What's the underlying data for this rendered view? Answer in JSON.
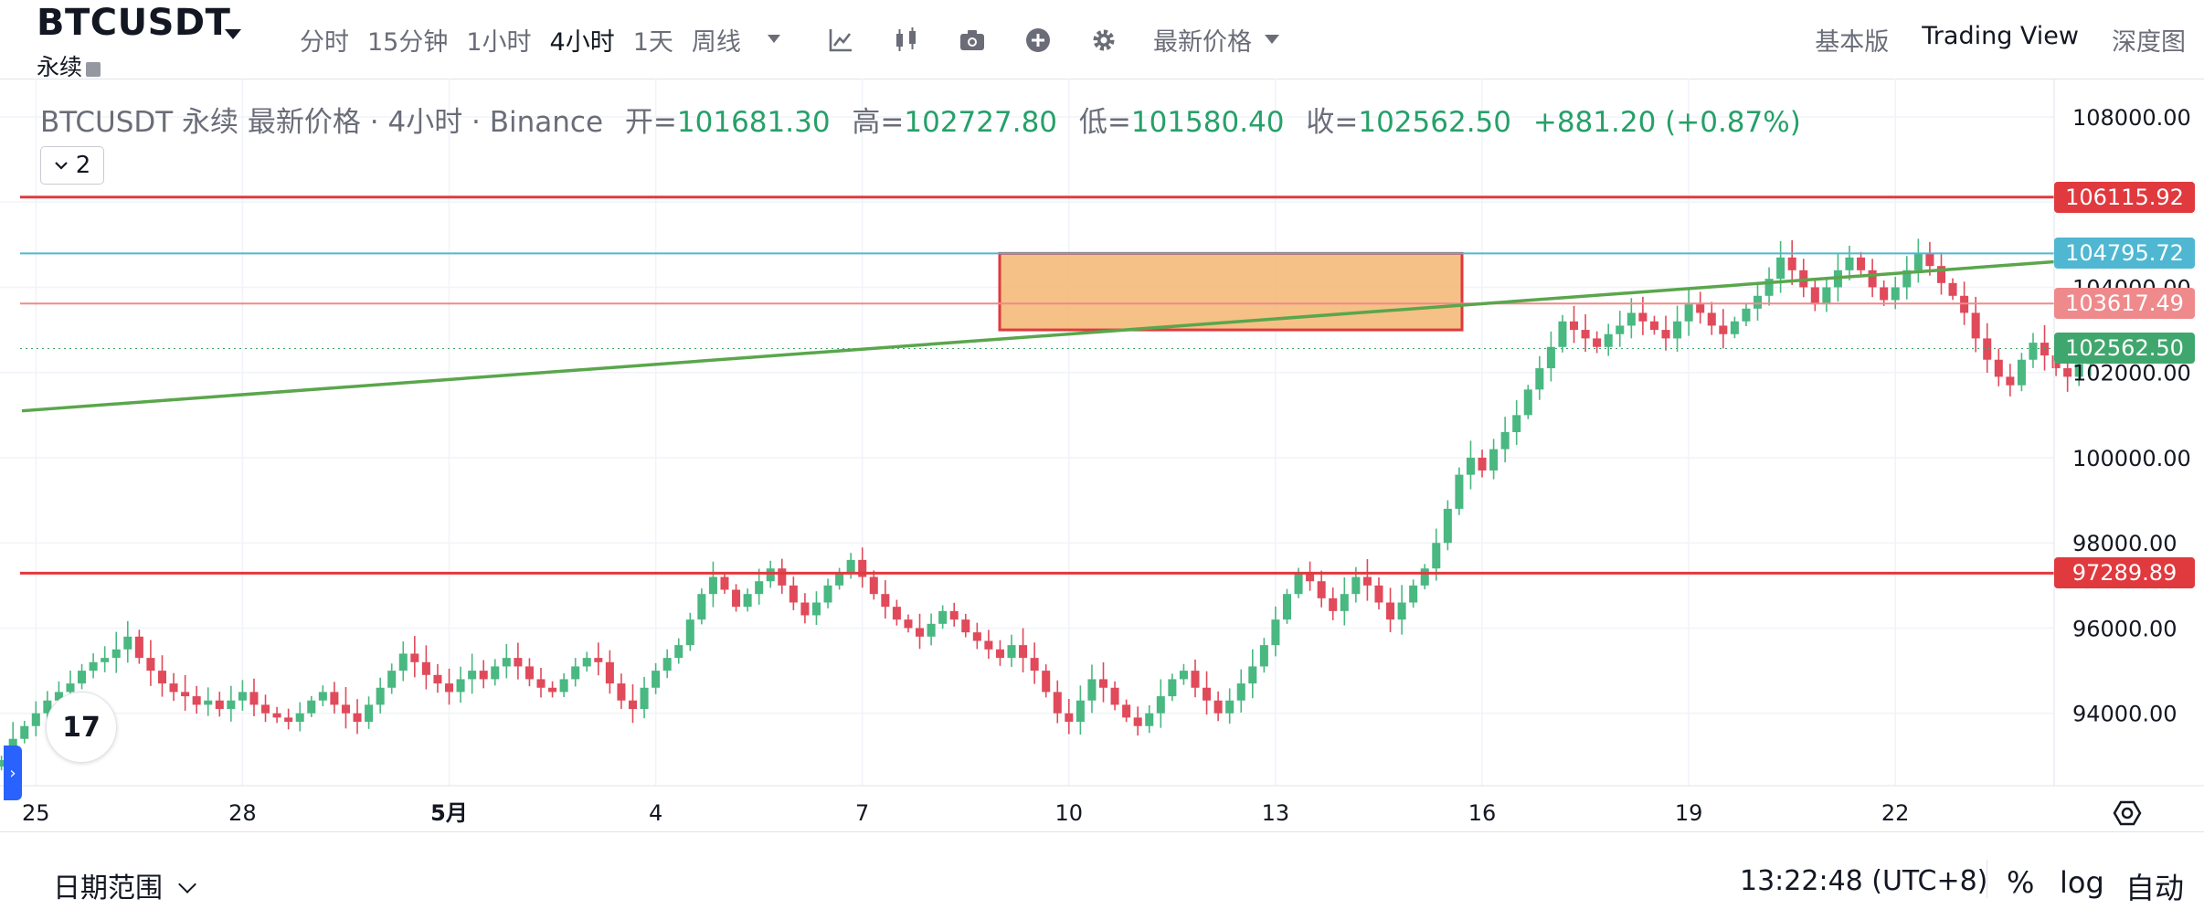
{
  "toolbar": {
    "symbol": "BTCUSDT",
    "subtype": "永续",
    "intervals": [
      "分时",
      "15分钟",
      "1小时",
      "4小时",
      "1天",
      "周线"
    ],
    "active_interval": "4小时",
    "icons": [
      "indicators-icon",
      "chart-type-icon",
      "camera-icon",
      "add-icon",
      "settings-icon"
    ],
    "price_type": "最新价格",
    "modes": [
      "基本版",
      "Trading View",
      "深度图"
    ],
    "active_mode": "Trading View"
  },
  "legend": {
    "title": "BTCUSDT 永续 最新价格 · 4小时 · Binance",
    "open_label": "开=",
    "open": "101681.30",
    "high_label": "高=",
    "high": "102727.80",
    "low_label": "低=",
    "low": "101580.40",
    "close_label": "收=",
    "close": "102562.50",
    "change": "+881.20 (+0.87%)",
    "collapse_count": "2"
  },
  "logo_text": "17",
  "price_lines": [
    {
      "price": "106115.92",
      "value": 106115.92,
      "color": "#e0393e",
      "width": 3
    },
    {
      "price": "104795.72",
      "value": 104795.72,
      "color": "#4fb7d2",
      "width": 2
    },
    {
      "price": "103617.49",
      "value": 103617.49,
      "color": "#ef8a8c",
      "width": 2
    },
    {
      "price": "102562.50",
      "value": 102562.5,
      "color": "#3fa76d",
      "width": 1
    },
    {
      "price": "97289.89",
      "value": 97289.89,
      "color": "#e0393e",
      "width": 3
    }
  ],
  "colors": {
    "up": "#26a69a",
    "up_body": "#49b881",
    "down": "#e04a5a",
    "trend": "#5aa64c",
    "box_fill": "#f3b671",
    "box_border": "#e0393e"
  },
  "chart_data": {
    "type": "candlestick",
    "title": "BTCUSDT 永续 最新价格 · 4小时 · Binance",
    "y_ticks": [
      108000,
      106000,
      104000,
      102000,
      100000,
      98000,
      96000,
      94000
    ],
    "y_tick_labels": [
      "108000.00",
      "106000.00",
      "104000.00",
      "102000.00",
      "100000.00",
      "98000.00",
      "96000.00",
      "94000.00"
    ],
    "ylim": [
      92300,
      108900
    ],
    "x_ticks": [
      {
        "label": "25",
        "day": 25
      },
      {
        "label": "28",
        "day": 28
      },
      {
        "label": "5月",
        "day": 31
      },
      {
        "label": "4",
        "day": 34
      },
      {
        "label": "7",
        "day": 37
      },
      {
        "label": "10",
        "day": 40
      },
      {
        "label": "13",
        "day": 43
      },
      {
        "label": "16",
        "day": 46
      },
      {
        "label": "19",
        "day": 49
      },
      {
        "label": "22",
        "day": 52
      }
    ],
    "xlim": [
      24.85,
      54.2
    ],
    "candle_step_days": 0.16667,
    "first_candle_day": 24.5,
    "closes": [
      92900,
      93400,
      93700,
      94000,
      94300,
      94500,
      94700,
      95000,
      95200,
      95300,
      95500,
      95800,
      95300,
      95000,
      94700,
      94500,
      94400,
      94200,
      94300,
      94100,
      94300,
      94500,
      94200,
      94000,
      93900,
      93800,
      94000,
      94300,
      94500,
      94200,
      94000,
      93800,
      94200,
      94600,
      95000,
      95400,
      95200,
      94900,
      94700,
      94500,
      94800,
      95000,
      94800,
      95100,
      95300,
      95100,
      94800,
      94600,
      94500,
      94800,
      95100,
      95300,
      95200,
      94700,
      94300,
      94100,
      94600,
      95000,
      95300,
      95600,
      96200,
      96800,
      97200,
      96900,
      96500,
      96800,
      97100,
      97400,
      97000,
      96600,
      96300,
      96600,
      97000,
      97300,
      97600,
      97200,
      96800,
      96500,
      96200,
      96000,
      95800,
      96100,
      96400,
      96200,
      95900,
      95700,
      95500,
      95300,
      95600,
      95300,
      95000,
      94500,
      94000,
      93800,
      94300,
      94800,
      94600,
      94200,
      93900,
      93700,
      94000,
      94400,
      94800,
      95000,
      94600,
      94300,
      94000,
      94300,
      94700,
      95100,
      95600,
      96200,
      96800,
      97300,
      97100,
      96700,
      96400,
      96800,
      97200,
      97000,
      96600,
      96200,
      96600,
      97000,
      97400,
      98000,
      98800,
      99600,
      100000,
      99700,
      100200,
      100600,
      101000,
      101600,
      102100,
      102600,
      103200,
      103000,
      102800,
      102600,
      102900,
      103100,
      103400,
      103200,
      103000,
      102800,
      103200,
      103600,
      103400,
      103100,
      102900,
      103200,
      103500,
      103800,
      104200,
      104700,
      104400,
      104000,
      103600,
      104000,
      104400,
      104700,
      104400,
      104000,
      103700,
      104000,
      104400,
      104800,
      104500,
      104100,
      103800,
      103400,
      102800,
      102300,
      101900,
      101700,
      102300,
      102700,
      102400,
      102100,
      101900,
      102200,
      102562
    ]
  },
  "bottombar": {
    "date_range": "日期范围",
    "time": "13:22:48 (UTC+8)",
    "percent": "%",
    "log": "log",
    "auto": "自动"
  }
}
